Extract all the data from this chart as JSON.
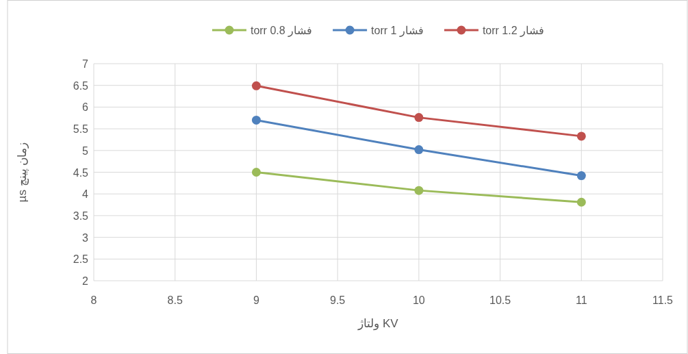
{
  "chart_data": {
    "type": "line",
    "xlabel": "ولتاژ KV",
    "ylabel": "زمان پینچ µs",
    "x": [
      9,
      10,
      11
    ],
    "series": [
      {
        "name": "فشار 0.8 torr",
        "color": "#9bbb59",
        "values": [
          4.5,
          4.08,
          3.81
        ]
      },
      {
        "name": "فشار 1 torr",
        "color": "#4f81bd",
        "values": [
          5.7,
          5.02,
          4.42
        ]
      },
      {
        "name": "فشار 1.2 torr",
        "color": "#c0504d",
        "values": [
          6.49,
          5.76,
          5.33
        ]
      }
    ],
    "xlim": [
      8,
      11.5
    ],
    "xticks": [
      8,
      8.5,
      9,
      9.5,
      10,
      10.5,
      11,
      11.5
    ],
    "ylim": [
      2,
      7
    ],
    "yticks": [
      2,
      2.5,
      3,
      3.5,
      4,
      4.5,
      5,
      5.5,
      6,
      6.5,
      7
    ],
    "grid": true,
    "legend": "top",
    "marker": "circle",
    "line_style": "solid"
  }
}
